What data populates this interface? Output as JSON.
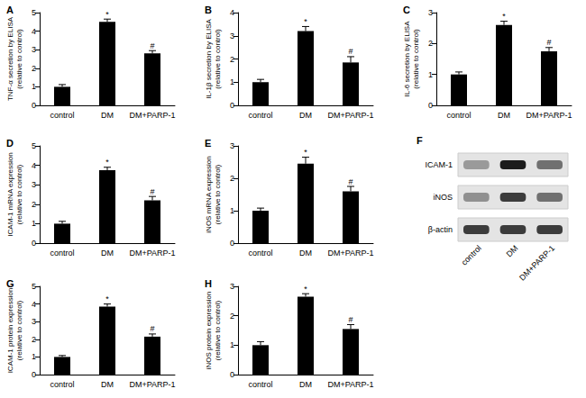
{
  "chart_data": [
    {
      "type": "bar",
      "title": "A",
      "ylabel": [
        "TNF-α secretion by ELISA",
        "(relative to control)"
      ],
      "categories": [
        "control",
        "DM",
        "DM+PARP-1"
      ],
      "values": [
        1,
        4.5,
        2.8
      ],
      "errors": [
        0.12,
        0.15,
        0.15
      ],
      "annotations": [
        null,
        "*",
        "#"
      ],
      "color": "#000000",
      "ylim": [
        0,
        5
      ],
      "yticks": [
        0,
        1,
        2,
        3,
        4,
        5
      ],
      "grid": false
    },
    {
      "type": "bar",
      "title": "B",
      "ylabel": [
        "IL-1β secretion by ELISA",
        "(relative to control)"
      ],
      "categories": [
        "control",
        "DM",
        "DM+PARP-1"
      ],
      "values": [
        1,
        3.2,
        1.85
      ],
      "errors": [
        0.12,
        0.2,
        0.25
      ],
      "annotations": [
        null,
        "*",
        "#"
      ],
      "color": "#000000",
      "ylim": [
        0,
        4
      ],
      "yticks": [
        0,
        1,
        2,
        3,
        4
      ],
      "grid": false
    },
    {
      "type": "bar",
      "title": "C",
      "ylabel": [
        "IL-6 secretion by ELISA",
        "(relative to control)"
      ],
      "categories": [
        "control",
        "DM",
        "DM+PARP-1"
      ],
      "values": [
        1,
        2.6,
        1.75
      ],
      "errors": [
        0.08,
        0.12,
        0.12
      ],
      "annotations": [
        null,
        "*",
        "#"
      ],
      "color": "#000000",
      "ylim": [
        0,
        3
      ],
      "yticks": [
        0,
        1,
        2,
        3
      ],
      "grid": false
    },
    {
      "type": "bar",
      "title": "D",
      "ylabel": [
        "ICAM-1 mRNA expression",
        "(relative to control)"
      ],
      "categories": [
        "control",
        "DM",
        "DM+PARP-1"
      ],
      "values": [
        1,
        3.75,
        2.2
      ],
      "errors": [
        0.12,
        0.15,
        0.2
      ],
      "annotations": [
        null,
        "*",
        "#"
      ],
      "color": "#000000",
      "ylim": [
        0,
        5
      ],
      "yticks": [
        0,
        1,
        2,
        3,
        4,
        5
      ],
      "grid": false
    },
    {
      "type": "bar",
      "title": "E",
      "ylabel": [
        "iNOS mRNA expression",
        "(relative to control)"
      ],
      "categories": [
        "control",
        "DM",
        "DM+PARP-1"
      ],
      "values": [
        1,
        2.45,
        1.6
      ],
      "errors": [
        0.08,
        0.2,
        0.15
      ],
      "annotations": [
        null,
        "*",
        "#"
      ],
      "color": "#000000",
      "ylim": [
        0,
        3
      ],
      "yticks": [
        0,
        1,
        2,
        3
      ],
      "grid": false
    },
    {
      "type": "bar",
      "title": "G",
      "ylabel": [
        "ICAM-1 protein expression",
        "(relative to control)"
      ],
      "categories": [
        "control",
        "DM",
        "DM+PARP-1"
      ],
      "values": [
        1,
        3.85,
        2.15
      ],
      "errors": [
        0.08,
        0.15,
        0.15
      ],
      "annotations": [
        null,
        "*",
        "#"
      ],
      "color": "#000000",
      "ylim": [
        0,
        5
      ],
      "yticks": [
        0,
        1,
        2,
        3,
        4,
        5
      ],
      "grid": false
    },
    {
      "type": "bar",
      "title": "H",
      "ylabel": [
        "iNOS protein expression",
        "(relative to control)"
      ],
      "categories": [
        "control",
        "DM",
        "DM+PARP-1"
      ],
      "values": [
        1,
        2.65,
        1.55
      ],
      "errors": [
        0.12,
        0.1,
        0.15
      ],
      "annotations": [
        null,
        "*",
        "#"
      ],
      "color": "#000000",
      "ylim": [
        0,
        3
      ],
      "yticks": [
        0,
        1,
        2,
        3
      ],
      "grid": false
    }
  ],
  "blot": {
    "title": "F",
    "lanes": [
      "control",
      "DM",
      "DM+PARP-1"
    ],
    "rows": [
      {
        "label": "ICAM-1",
        "intensity": [
          0.35,
          0.95,
          0.55
        ]
      },
      {
        "label": "iNOS",
        "intensity": [
          0.4,
          0.8,
          0.55
        ]
      },
      {
        "label": "β-actin",
        "intensity": [
          0.8,
          0.8,
          0.8
        ]
      }
    ]
  }
}
